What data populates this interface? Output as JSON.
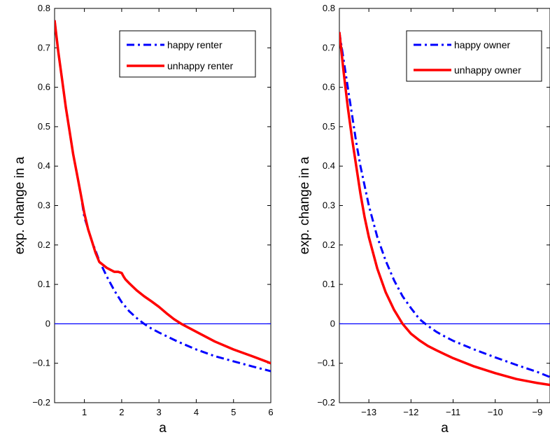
{
  "chart_data": [
    {
      "type": "line",
      "xlabel": "a",
      "ylabel": "exp. change in a",
      "xlim": [
        0.2,
        6
      ],
      "ylim": [
        -0.2,
        0.8
      ],
      "xticks": [
        1,
        2,
        3,
        4,
        5,
        6
      ],
      "xtick_labels": [
        "1",
        "2",
        "3",
        "4",
        "5",
        "6"
      ],
      "yticks": [
        -0.2,
        -0.1,
        0,
        0.1,
        0.2,
        0.3,
        0.4,
        0.5,
        0.6,
        0.7,
        0.8
      ],
      "ytick_labels": [
        "−0.2",
        "−0.1",
        "0",
        "0.1",
        "0.2",
        "0.3",
        "0.4",
        "0.5",
        "0.6",
        "0.7",
        "0.8"
      ],
      "grid": false,
      "legend_position": "top-right",
      "hline": 0,
      "hline_color": "#0000ff",
      "series": [
        {
          "name": "happy renter",
          "color": "#0000ff",
          "style": "dashdot",
          "x": [
            0.2,
            0.3,
            0.4,
            0.5,
            0.6,
            0.7,
            0.8,
            0.9,
            1.0,
            1.2,
            1.4,
            1.6,
            1.8,
            2.0,
            2.2,
            2.4,
            2.6,
            2.8,
            3.0,
            3.5,
            4.0,
            4.5,
            5.0,
            5.5,
            6.0
          ],
          "y": [
            0.77,
            0.69,
            0.62,
            0.55,
            0.49,
            0.43,
            0.38,
            0.33,
            0.27,
            0.21,
            0.16,
            0.12,
            0.085,
            0.055,
            0.032,
            0.015,
            0.0,
            -0.012,
            -0.022,
            -0.045,
            -0.065,
            -0.082,
            -0.095,
            -0.108,
            -0.12
          ]
        },
        {
          "name": "unhappy renter",
          "color": "#ff0000",
          "style": "solid",
          "x": [
            0.2,
            0.3,
            0.4,
            0.5,
            0.6,
            0.7,
            0.8,
            0.9,
            1.0,
            1.1,
            1.2,
            1.3,
            1.4,
            1.6,
            1.8,
            1.9,
            2.0,
            2.05,
            2.1,
            2.2,
            2.4,
            2.6,
            2.8,
            3.0,
            3.2,
            3.4,
            3.6,
            4.0,
            4.5,
            5.0,
            5.5,
            6.0
          ],
          "y": [
            0.77,
            0.69,
            0.62,
            0.55,
            0.49,
            0.43,
            0.38,
            0.33,
            0.28,
            0.24,
            0.21,
            0.18,
            0.157,
            0.142,
            0.132,
            0.132,
            0.129,
            0.12,
            0.113,
            0.103,
            0.085,
            0.07,
            0.057,
            0.043,
            0.027,
            0.012,
            0.0,
            -0.02,
            -0.045,
            -0.065,
            -0.082,
            -0.1
          ]
        }
      ]
    },
    {
      "type": "line",
      "xlabel": "a",
      "ylabel": "exp. change in a",
      "xlim": [
        -13.7,
        -8.7
      ],
      "ylim": [
        -0.2,
        0.8
      ],
      "xticks": [
        -13,
        -12,
        -11,
        -10,
        -9
      ],
      "xtick_labels": [
        "−13",
        "−12",
        "−11",
        "−10",
        "−9"
      ],
      "yticks": [
        -0.2,
        -0.1,
        0,
        0.1,
        0.2,
        0.3,
        0.4,
        0.5,
        0.6,
        0.7,
        0.8
      ],
      "ytick_labels": [
        "−0.2",
        "−0.1",
        "0",
        "0.1",
        "0.2",
        "0.3",
        "0.4",
        "0.5",
        "0.6",
        "0.7",
        "0.8"
      ],
      "grid": false,
      "legend_position": "top-right",
      "hline": 0,
      "hline_color": "#0000ff",
      "series": [
        {
          "name": "happy owner",
          "color": "#0000ff",
          "style": "dashdot",
          "x": [
            -13.7,
            -13.6,
            -13.5,
            -13.4,
            -13.3,
            -13.2,
            -13.1,
            -13.0,
            -12.8,
            -12.6,
            -12.4,
            -12.2,
            -12.0,
            -11.8,
            -11.6,
            -11.4,
            -11.2,
            -11.0,
            -10.5,
            -10.0,
            -9.5,
            -9.0,
            -8.7
          ],
          "y": [
            0.74,
            0.67,
            0.6,
            0.53,
            0.46,
            0.4,
            0.35,
            0.3,
            0.22,
            0.16,
            0.11,
            0.07,
            0.04,
            0.012,
            -0.005,
            -0.02,
            -0.032,
            -0.043,
            -0.065,
            -0.085,
            -0.104,
            -0.122,
            -0.135
          ]
        },
        {
          "name": "unhappy owner",
          "color": "#ff0000",
          "style": "solid",
          "x": [
            -13.7,
            -13.6,
            -13.5,
            -13.4,
            -13.3,
            -13.2,
            -13.1,
            -13.0,
            -12.8,
            -12.6,
            -12.4,
            -12.2,
            -12.0,
            -11.8,
            -11.6,
            -11.4,
            -11.2,
            -11.0,
            -10.5,
            -10.0,
            -9.5,
            -9.0,
            -8.7
          ],
          "y": [
            0.74,
            0.64,
            0.55,
            0.47,
            0.4,
            0.33,
            0.27,
            0.22,
            0.14,
            0.08,
            0.035,
            0.0,
            -0.025,
            -0.042,
            -0.056,
            -0.067,
            -0.077,
            -0.087,
            -0.108,
            -0.125,
            -0.14,
            -0.15,
            -0.155
          ]
        }
      ]
    }
  ]
}
